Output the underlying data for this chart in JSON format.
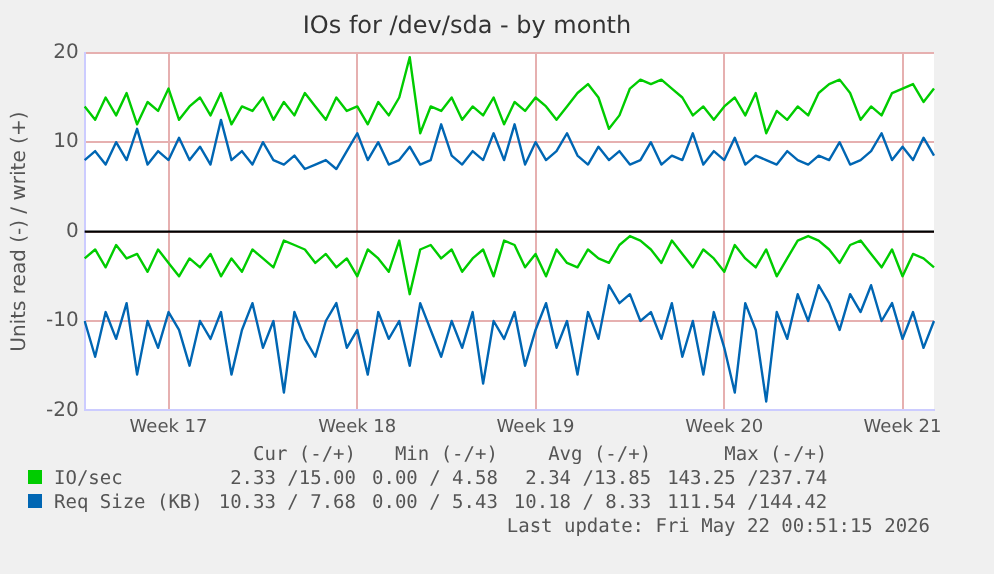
{
  "chart_data": {
    "type": "line",
    "title": "IOs for /dev/sda - by month",
    "ylabel": "Units read (-) / write (+)",
    "ylim": [
      -20,
      20
    ],
    "categories": [
      null,
      null,
      null,
      null,
      null,
      null,
      null,
      null,
      "Week 17",
      null,
      null,
      null,
      null,
      null,
      null,
      null,
      null,
      null,
      null,
      null,
      null,
      null,
      null,
      null,
      null,
      null,
      "Week 18",
      null,
      null,
      null,
      null,
      null,
      null,
      null,
      null,
      null,
      null,
      null,
      null,
      null,
      null,
      null,
      null,
      "Week 19",
      null,
      null,
      null,
      null,
      null,
      null,
      null,
      null,
      null,
      null,
      null,
      null,
      null,
      null,
      null,
      null,
      null,
      "Week 20",
      null,
      null,
      null,
      null,
      null,
      null,
      null,
      null,
      null,
      null,
      null,
      null,
      null,
      null,
      null,
      null,
      "Week 21",
      null,
      null,
      null
    ],
    "yticks": [
      -20,
      -10,
      0,
      10,
      20
    ],
    "grid": true,
    "legend": "bottom",
    "marker": "none",
    "line_style": "solid",
    "series": [
      {
        "name": "IO/sec",
        "color": "#00cc00",
        "values": [
          14,
          12.5,
          15,
          13,
          15.5,
          12,
          14.5,
          13.5,
          16,
          12.5,
          14,
          15,
          13,
          15.5,
          12,
          14,
          13.5,
          15,
          12.5,
          14.5,
          13,
          15.5,
          14,
          12.5,
          15,
          13.5,
          14,
          12,
          14.5,
          13,
          15,
          19.5,
          11,
          14,
          13.5,
          15,
          12.5,
          14,
          13,
          15,
          12,
          14.5,
          13.5,
          15,
          14,
          12.5,
          14,
          15.5,
          16.5,
          15,
          11.5,
          13,
          16,
          17,
          16.5,
          17,
          16,
          15,
          13,
          14,
          12.5,
          14,
          15,
          13,
          15.5,
          11,
          13.5,
          12.5,
          14,
          13,
          15.5,
          16.5,
          17,
          15.5,
          12.5,
          14,
          13,
          15.5,
          16,
          16.5,
          14.5,
          16
        ]
      },
      {
        "color": "#00cc00",
        "values": [
          -3,
          -2,
          -4,
          -1.5,
          -3,
          -2.5,
          -4.5,
          -2,
          -3.5,
          -5,
          -3,
          -4,
          -2.5,
          -5,
          -3,
          -4.5,
          -2,
          -3,
          -4,
          -1,
          -1.5,
          -2,
          -3.5,
          -2.5,
          -4,
          -3,
          -5,
          -2,
          -3,
          -4.5,
          -1,
          -7,
          -2,
          -1.5,
          -3,
          -2,
          -4.5,
          -3,
          -2,
          -5,
          -1,
          -1.5,
          -4,
          -2.5,
          -5,
          -2,
          -3.5,
          -4,
          -2,
          -3,
          -3.5,
          -1.5,
          -0.5,
          -1,
          -2,
          -3.5,
          -1,
          -2.5,
          -4,
          -2,
          -3,
          -4.5,
          -1.5,
          -3,
          -4,
          -2,
          -5,
          -3,
          -1,
          -0.5,
          -1,
          -2,
          -3.5,
          -1.5,
          -1,
          -2.5,
          -4,
          -2,
          -5,
          -2.5,
          -3,
          -4
        ]
      },
      {
        "name": "Req Size (KB)",
        "color": "#0066b3",
        "values": [
          8,
          9,
          7.5,
          10,
          8,
          11.5,
          7.5,
          9,
          8,
          10.5,
          8,
          9.5,
          7.5,
          12.5,
          8,
          9,
          7.5,
          10,
          8,
          7.5,
          8.5,
          7,
          7.5,
          8,
          7,
          9,
          11,
          8,
          10,
          7.5,
          8,
          9.5,
          7.5,
          8,
          12,
          8.5,
          7.5,
          9,
          8,
          11,
          8,
          12,
          7.5,
          10,
          8,
          9,
          11,
          8.5,
          7.5,
          9.5,
          8,
          9,
          7.5,
          8,
          10,
          7.5,
          8.5,
          8,
          11,
          7.5,
          9,
          8,
          10.5,
          7.5,
          8.5,
          8,
          7.5,
          9,
          8,
          7.5,
          8.5,
          8,
          10,
          7.5,
          8,
          9,
          11,
          8,
          9.5,
          8,
          10.5,
          8.5
        ]
      },
      {
        "color": "#0066b3",
        "values": [
          -10,
          -14,
          -9,
          -12,
          -8,
          -16,
          -10,
          -13,
          -9,
          -11,
          -15,
          -10,
          -12,
          -9,
          -16,
          -11,
          -8,
          -13,
          -10,
          -18,
          -9,
          -12,
          -14,
          -10,
          -8,
          -13,
          -11,
          -16,
          -9,
          -12,
          -10,
          -15,
          -8,
          -11,
          -14,
          -10,
          -13,
          -9,
          -17,
          -10,
          -12,
          -9,
          -15,
          -11,
          -8,
          -13,
          -10,
          -16,
          -9,
          -12,
          -6,
          -8,
          -7,
          -10,
          -9,
          -12,
          -8,
          -14,
          -10,
          -16,
          -9,
          -13,
          -18,
          -8,
          -11,
          -19,
          -9,
          -12,
          -7,
          -10,
          -6,
          -8,
          -11,
          -7,
          -9,
          -6,
          -10,
          -8,
          -12,
          -9,
          -13,
          -10
        ]
      }
    ],
    "ref_lines": [
      {
        "axis": "y",
        "value": 0,
        "color": "#000000"
      }
    ],
    "annotations": [
      "Cur (-/+)",
      "Min (-/+)",
      "Avg (-/+)",
      "Max (-/+)",
      "2.33 /15.00",
      "0.00 / 4.58",
      "2.34 /13.85",
      "143.25 /237.74",
      "10.33 / 7.68",
      "0.00 / 5.43",
      "10.18 / 8.33",
      "111.54 /144.42",
      "Last update: Fri May 22 00:51:15 2026"
    ]
  }
}
